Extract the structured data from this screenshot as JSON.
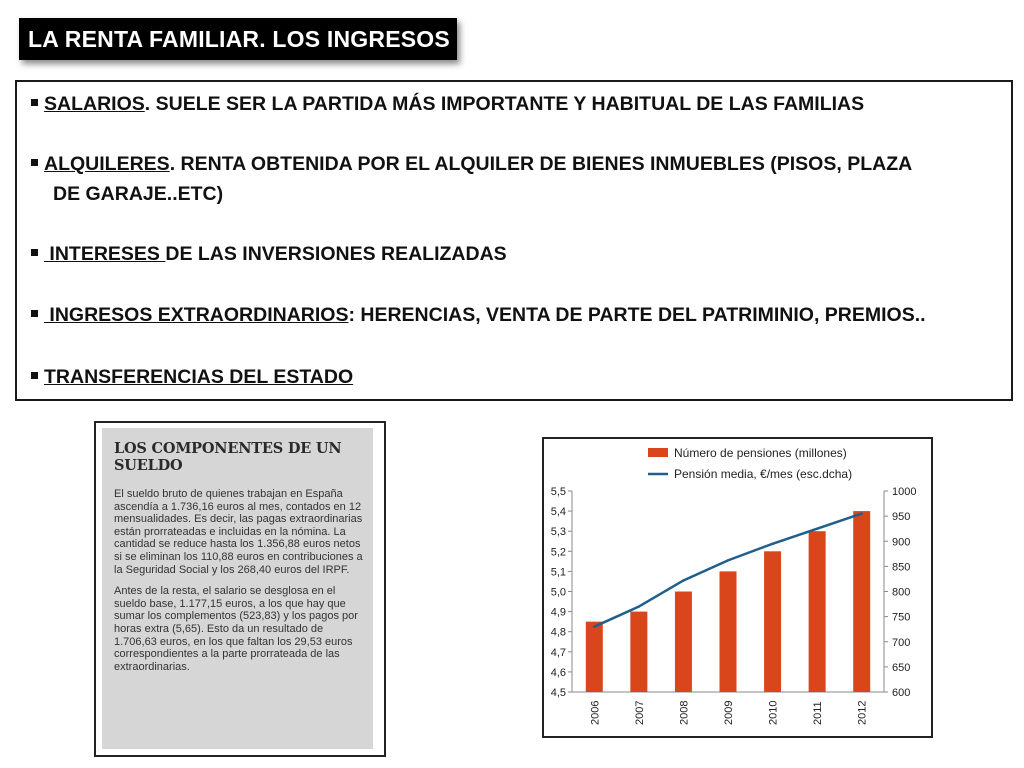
{
  "title": "LA RENTA FAMILIAR. LOS INGRESOS",
  "bullets": {
    "b1_u": "SALARIOS",
    "b1_rest": ". SUELE SER LA PARTIDA MÁS IMPORTANTE Y HABITUAL DE LAS FAMILIAS",
    "b2_u": "ALQUILERES",
    "b2_rest": ". RENTA OBTENIDA POR EL ALQUILER DE BIENES INMUEBLES (PISOS, PLAZA",
    "b2_cont": "DE GARAJE..ETC)",
    "b3_u": " INTERESES ",
    "b3_rest": "DE LAS INVERSIONES REALIZADAS",
    "b4_u": " INGRESOS EXTRAORDINARIOS",
    "b4_rest": ": HERENCIAS, VENTA DE PARTE DEL PATRIMINIO, PREMIOS..",
    "b5_u": "TRANSFERENCIAS DEL ESTADO"
  },
  "article": {
    "title": "LOS COMPONENTES DE UN SUELDO",
    "p1": "El sueldo bruto de quienes trabajan en España ascendía a 1.736,16 euros al mes, contados en 12 mensualidades. Es decir, las pagas extraordinarias están prorrateadas e incluidas en la nómina. La cantidad se reduce hasta los 1.356,88 euros netos si se eliminan los 110,88 euros en contribuciones a la Seguridad Social y los 268,40 euros del IRPF.",
    "p2": "Antes de la resta, el salario se desglosa en el sueldo base, 1.177,15 euros, a los que hay que sumar los complementos (523,83) y los pagos por horas extra (5,65). Esto da un resultado de 1.706,63 euros, en los que faltan los 29,53 euros correspondientes a la parte prorrateada de las extraordinarias."
  },
  "chart_data": {
    "type": "bar",
    "categories": [
      "2006",
      "2007",
      "2008",
      "2009",
      "2010",
      "2011",
      "2012"
    ],
    "series": [
      {
        "name": "Número de pensiones (millones)",
        "type": "bar",
        "axis": "left",
        "color": "#d9461c",
        "values": [
          4.85,
          4.9,
          5.0,
          5.1,
          5.2,
          5.3,
          5.4
        ]
      },
      {
        "name": "Pensión media, €/mes (esc.dcha)",
        "type": "line",
        "axis": "right",
        "color": "#1f5f8b",
        "values": [
          730,
          770,
          822,
          862,
          895,
          925,
          955
        ]
      }
    ],
    "y_left": {
      "min": 4.5,
      "max": 5.5,
      "ticks": [
        "4,5",
        "4,6",
        "4,7",
        "4,8",
        "4,9",
        "5,0",
        "5,1",
        "5,2",
        "5,3",
        "5,4",
        "5,5"
      ]
    },
    "y_right": {
      "min": 600,
      "max": 1000,
      "ticks": [
        "600",
        "650",
        "700",
        "750",
        "800",
        "850",
        "900",
        "950",
        "1000"
      ]
    },
    "legend_position": "top",
    "grid": false
  }
}
